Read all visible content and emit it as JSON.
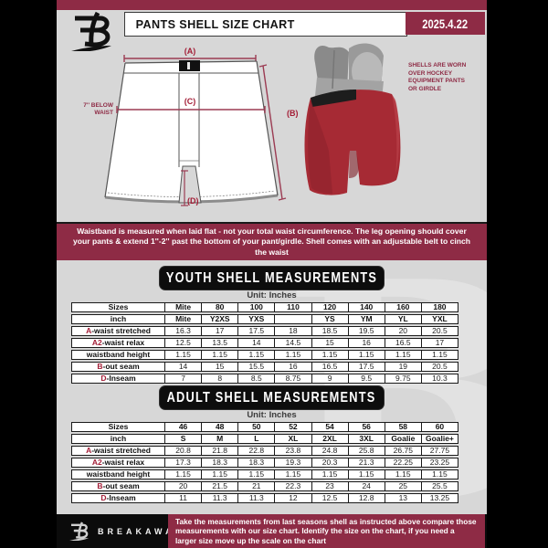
{
  "colors": {
    "maroon": "#8e2b45",
    "accent_red": "#a31d36",
    "page_bg": "#d7d7d7",
    "banner_black": "#0d0d0d"
  },
  "header": {
    "title": "PANTS SHELL SIZE CHART",
    "date": "2025.4.22",
    "logo": "breakaway-b-mark"
  },
  "diagram": {
    "label_a": "(A)",
    "label_b": "(B)",
    "label_c": "(C)",
    "label_d": "(D)",
    "waist_note": "7'' BELOW WAIST",
    "photo_caption": "SHELLS ARE WORN OVER HOCKEY EQUIPMENT PANTS OR GIRDLE"
  },
  "notice": {
    "text": "Waistband is measured when laid flat - not your total waist circumference. The leg opening should cover your pants & extend 1''-2'' past the bottom of your pant/girdle. Shell comes with an adjustable belt to cinch the waist"
  },
  "youth_section": {
    "heading": "YOUTH SHELL MEASUREMENTS",
    "unit_label": "Unit: Inches",
    "table": {
      "rows": [
        {
          "prefix": "",
          "label": "Sizes",
          "header": true,
          "values": [
            "Mite",
            "80",
            "100",
            "110",
            "120",
            "140",
            "160",
            "180"
          ]
        },
        {
          "prefix": "",
          "label": "inch",
          "header": true,
          "values": [
            "Mite",
            "Y2XS",
            "YXS",
            "",
            "YS",
            "YM",
            "YL",
            "YXL"
          ]
        },
        {
          "prefix": "A",
          "label": "-waist stretched",
          "header": false,
          "values": [
            "16.3",
            "17",
            "17.5",
            "18",
            "18.5",
            "19.5",
            "20",
            "20.5"
          ]
        },
        {
          "prefix": "A2",
          "label": "-waist relax",
          "header": false,
          "values": [
            "12.5",
            "13.5",
            "14",
            "14.5",
            "15",
            "16",
            "16.5",
            "17"
          ]
        },
        {
          "prefix": "",
          "label": "waistband height",
          "header": false,
          "values": [
            "1.15",
            "1.15",
            "1.15",
            "1.15",
            "1.15",
            "1.15",
            "1.15",
            "1.15"
          ]
        },
        {
          "prefix": "B",
          "label": "-out seam",
          "header": false,
          "values": [
            "14",
            "15",
            "15.5",
            "16",
            "16.5",
            "17.5",
            "19",
            "20.5"
          ]
        },
        {
          "prefix": "D",
          "label": "-Inseam",
          "header": false,
          "values": [
            "7",
            "8",
            "8.5",
            "8.75",
            "9",
            "9.5",
            "9.75",
            "10.3"
          ]
        }
      ]
    }
  },
  "adult_section": {
    "heading": "ADULT SHELL MEASUREMENTS",
    "unit_label": "Unit: Inches",
    "table": {
      "rows": [
        {
          "prefix": "",
          "label": "Sizes",
          "header": true,
          "values": [
            "46",
            "48",
            "50",
            "52",
            "54",
            "56",
            "58",
            "60"
          ]
        },
        {
          "prefix": "",
          "label": "inch",
          "header": true,
          "values": [
            "S",
            "M",
            "L",
            "XL",
            "2XL",
            "3XL",
            "Goalie",
            "Goalie+"
          ]
        },
        {
          "prefix": "A",
          "label": "-waist stretched",
          "header": false,
          "values": [
            "20.8",
            "21.8",
            "22.8",
            "23.8",
            "24.8",
            "25.8",
            "26.75",
            "27.75"
          ]
        },
        {
          "prefix": "A2",
          "label": "-waist relax",
          "header": false,
          "values": [
            "17.3",
            "18.3",
            "18.3",
            "19.3",
            "20.3",
            "21.3",
            "22.25",
            "23.25"
          ]
        },
        {
          "prefix": "",
          "label": "waistband height",
          "header": false,
          "values": [
            "1.15",
            "1.15",
            "1.15",
            "1.15",
            "1.15",
            "1.15",
            "1.15",
            "1.15"
          ]
        },
        {
          "prefix": "B",
          "label": "-out seam",
          "header": false,
          "values": [
            "20",
            "21.5",
            "21",
            "22.3",
            "23",
            "24",
            "25",
            "25.5"
          ]
        },
        {
          "prefix": "D",
          "label": "-Inseam",
          "header": false,
          "values": [
            "11",
            "11.3",
            "11.3",
            "12",
            "12.5",
            "12.8",
            "13",
            "13.25"
          ]
        }
      ]
    }
  },
  "footer": {
    "brand": "BREAKAWAY",
    "note": "Take the measurements from last seasons shell as instructed above compare those measurements  with our size chart. Identify the size on the chart, if you need a larger size move up the scale on the chart"
  }
}
